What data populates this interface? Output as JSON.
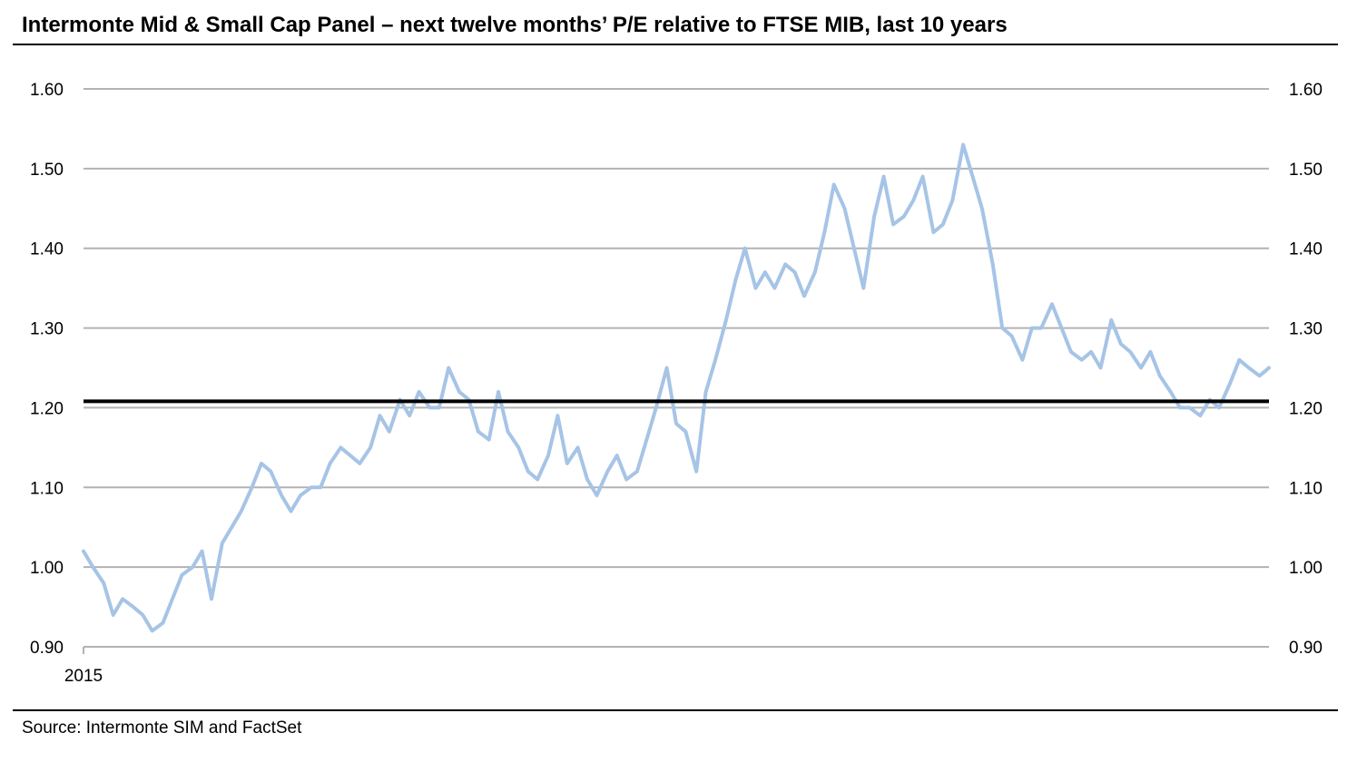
{
  "title": "Intermonte Mid & Small Cap Panel – next twelve months’ P/E relative to FTSE MIB, last 10 years",
  "source": "Source: Intermonte SIM and FactSet",
  "chart_data": {
    "type": "line",
    "title": "Intermonte Mid & Small Cap Panel – next twelve months’ P/E relative to FTSE MIB, last 10 years",
    "xlabel": "",
    "ylabel": "",
    "ylim": [
      0.9,
      1.6
    ],
    "yticks": [
      "0.90",
      "1.00",
      "1.10",
      "1.20",
      "1.30",
      "1.40",
      "1.50",
      "1.60"
    ],
    "xtick_labels": [
      "2015"
    ],
    "x_range": [
      2015.0,
      2025.0
    ],
    "grid": true,
    "axes": "dual-y",
    "average": 1.208,
    "colors": {
      "series": "#a6c4e6",
      "average": "#000000",
      "grid": "#b3b3b3"
    },
    "series": [
      {
        "x": [
          2015.0,
          2015.08,
          2015.17,
          2015.25,
          2015.33,
          2015.42,
          2015.5,
          2015.58,
          2015.67,
          2015.75,
          2015.83,
          2015.92,
          2016.0,
          2016.08,
          2016.17,
          2016.25,
          2016.33,
          2016.42,
          2016.5,
          2016.58,
          2016.67,
          2016.75,
          2016.83,
          2016.92,
          2017.0,
          2017.08,
          2017.17,
          2017.25,
          2017.33,
          2017.42,
          2017.5,
          2017.58,
          2017.67,
          2017.75,
          2017.83,
          2017.92,
          2018.0,
          2018.08,
          2018.17,
          2018.25,
          2018.33,
          2018.42,
          2018.5,
          2018.58,
          2018.67,
          2018.75,
          2018.83,
          2018.92,
          2019.0,
          2019.08,
          2019.17,
          2019.25,
          2019.33,
          2019.42,
          2019.5,
          2019.58,
          2019.67,
          2019.75,
          2019.83,
          2019.92,
          2020.0,
          2020.08,
          2020.17,
          2020.25,
          2020.33,
          2020.42,
          2020.5,
          2020.58,
          2020.67,
          2020.75,
          2020.83,
          2020.92,
          2021.0,
          2021.08,
          2021.17,
          2021.25,
          2021.33,
          2021.42,
          2021.5,
          2021.58,
          2021.67,
          2021.75,
          2021.83,
          2021.92,
          2022.0,
          2022.08,
          2022.17,
          2022.25,
          2022.33,
          2022.42,
          2022.5,
          2022.58,
          2022.67,
          2022.75,
          2022.83,
          2022.92,
          2023.0,
          2023.08,
          2023.17,
          2023.25,
          2023.33,
          2023.42,
          2023.5,
          2023.58,
          2023.67,
          2023.75,
          2023.83,
          2023.92,
          2024.0,
          2024.08,
          2024.17,
          2024.25,
          2024.33,
          2024.42,
          2024.5,
          2024.58,
          2024.67,
          2024.75,
          2024.83,
          2024.92,
          2025.0
        ],
        "y": [
          1.02,
          1.0,
          0.98,
          0.94,
          0.96,
          0.95,
          0.94,
          0.92,
          0.93,
          0.96,
          0.99,
          1.0,
          1.02,
          0.96,
          1.03,
          1.05,
          1.07,
          1.1,
          1.13,
          1.12,
          1.09,
          1.07,
          1.09,
          1.1,
          1.1,
          1.13,
          1.15,
          1.14,
          1.13,
          1.15,
          1.19,
          1.17,
          1.21,
          1.19,
          1.22,
          1.2,
          1.2,
          1.25,
          1.22,
          1.21,
          1.17,
          1.16,
          1.22,
          1.17,
          1.15,
          1.12,
          1.11,
          1.14,
          1.19,
          1.13,
          1.15,
          1.11,
          1.09,
          1.12,
          1.14,
          1.11,
          1.12,
          1.16,
          1.2,
          1.25,
          1.18,
          1.17,
          1.12,
          1.22,
          1.26,
          1.31,
          1.36,
          1.4,
          1.35,
          1.37,
          1.35,
          1.38,
          1.37,
          1.34,
          1.37,
          1.42,
          1.48,
          1.45,
          1.4,
          1.35,
          1.44,
          1.49,
          1.43,
          1.44,
          1.46,
          1.49,
          1.42,
          1.43,
          1.46,
          1.53,
          1.49,
          1.45,
          1.38,
          1.3,
          1.29,
          1.26,
          1.3,
          1.3,
          1.33,
          1.3,
          1.27,
          1.26,
          1.27,
          1.25,
          1.31,
          1.28,
          1.27,
          1.25,
          1.27,
          1.24,
          1.22,
          1.2,
          1.2,
          1.19,
          1.21,
          1.2,
          1.23,
          1.26,
          1.25,
          1.24,
          1.25
        ]
      }
    ]
  }
}
